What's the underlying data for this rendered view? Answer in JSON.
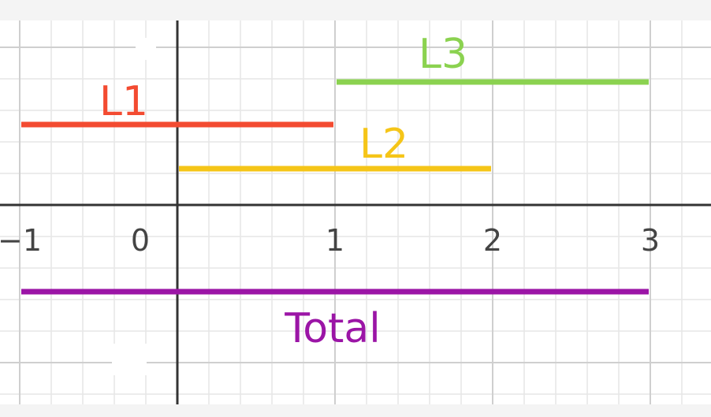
{
  "diagram": {
    "x_range": [
      -1.27,
      3.23
    ],
    "x_ticks": [
      {
        "value": -1,
        "label": "−1"
      },
      {
        "value": 0,
        "label": "0"
      },
      {
        "value": 1,
        "label": "1"
      },
      {
        "value": 2,
        "label": "2"
      },
      {
        "value": 3,
        "label": "3"
      }
    ],
    "segments": [
      {
        "id": "l1",
        "label": "L1",
        "start": -1,
        "end": 1,
        "color": "#f34b31"
      },
      {
        "id": "l2",
        "label": "L2",
        "start": 0,
        "end": 2,
        "color": "#f5c518"
      },
      {
        "id": "l3",
        "label": "L3",
        "start": 1,
        "end": 3,
        "color": "#8bd250"
      },
      {
        "id": "total",
        "label": "Total",
        "start": -1,
        "end": 3,
        "color": "#9b15a6"
      }
    ],
    "colors": {
      "background": "#ffffff",
      "outer_background": "#f4f4f4",
      "major_grid": "#cfcfcf",
      "minor_grid": "#e6e6e6",
      "axis": "#333333",
      "tick_label": "#444444"
    }
  }
}
